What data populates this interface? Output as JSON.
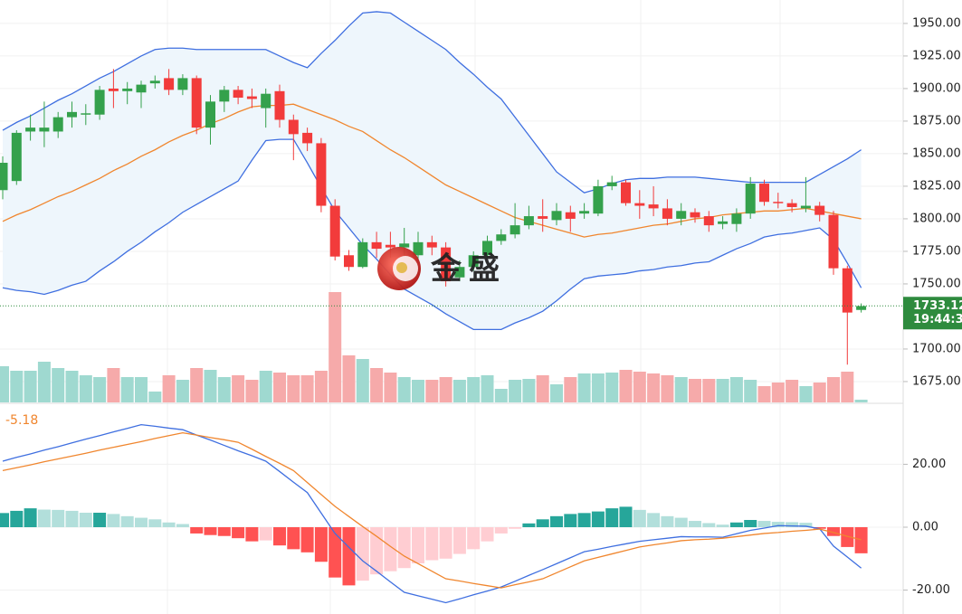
{
  "chart_data": [
    {
      "type": "candlestick",
      "categories": [
        null,
        null,
        null,
        null,
        null,
        null,
        null,
        null,
        null,
        null,
        null,
        null,
        null,
        null,
        null,
        null,
        null,
        null,
        null,
        null,
        null,
        null,
        null,
        null,
        null,
        null,
        null,
        null,
        null,
        null,
        null,
        null,
        null,
        null,
        null,
        null,
        null,
        null,
        null,
        null,
        null,
        null,
        null,
        null,
        null,
        null,
        null,
        null,
        null,
        null,
        null,
        null,
        null,
        null,
        null,
        null,
        null,
        null,
        null,
        null,
        null,
        null,
        null
      ],
      "open": [
        1822,
        1829,
        1867,
        1867,
        1867,
        1878,
        1880,
        1880,
        1900,
        1898,
        1897,
        1904,
        1908,
        1899,
        1908,
        1870,
        1890,
        1899,
        1894,
        1885,
        1898,
        1876,
        1866,
        1858,
        1810,
        1772,
        1763,
        1782,
        1780,
        1778,
        1772,
        1782,
        1778,
        1755,
        1763,
        1772,
        1783,
        1788,
        1795,
        1802,
        1799,
        1805,
        1804,
        1804,
        1825,
        1828,
        1812,
        1811,
        1808,
        1800,
        1805,
        1802,
        1796,
        1796,
        1804,
        1827,
        1813,
        1812,
        1808,
        1810,
        1803,
        1762,
        1730
      ],
      "high": [
        1848,
        1868,
        1880,
        1890,
        1882,
        1890,
        1888,
        1902,
        1915,
        1905,
        1906,
        1910,
        1915,
        1911,
        1910,
        1895,
        1902,
        1902,
        1900,
        1900,
        1903,
        1880,
        1870,
        1862,
        1815,
        1776,
        1785,
        1790,
        1790,
        1793,
        1790,
        1787,
        1782,
        1768,
        1775,
        1787,
        1792,
        1812,
        1810,
        1815,
        1812,
        1810,
        1812,
        1830,
        1833,
        1830,
        1822,
        1825,
        1815,
        1812,
        1808,
        1806,
        1802,
        1808,
        1832,
        1830,
        1820,
        1815,
        1832,
        1813,
        1806,
        1764,
        1735
      ],
      "low": [
        1815,
        1826,
        1860,
        1855,
        1862,
        1870,
        1872,
        1876,
        1885,
        1888,
        1885,
        1900,
        1895,
        1895,
        1865,
        1857,
        1882,
        1888,
        1885,
        1870,
        1870,
        1845,
        1852,
        1805,
        1768,
        1760,
        1762,
        1770,
        1770,
        1772,
        1768,
        1772,
        1748,
        1752,
        1760,
        1770,
        1780,
        1785,
        1792,
        1790,
        1795,
        1790,
        1800,
        1802,
        1822,
        1810,
        1800,
        1802,
        1795,
        1795,
        1797,
        1790,
        1792,
        1790,
        1800,
        1810,
        1808,
        1805,
        1805,
        1798,
        1757,
        1688,
        1728
      ],
      "close": [
        1843,
        1866,
        1870,
        1870,
        1878,
        1882,
        1881,
        1899,
        1898,
        1900,
        1903,
        1906,
        1899,
        1908,
        1870,
        1890,
        1899,
        1893,
        1892,
        1896,
        1876,
        1865,
        1858,
        1810,
        1771,
        1763,
        1782,
        1777,
        1778,
        1781,
        1782,
        1778,
        1752,
        1763,
        1772,
        1783,
        1788,
        1795,
        1802,
        1800,
        1806,
        1800,
        1806,
        1825,
        1828,
        1812,
        1810,
        1808,
        1800,
        1806,
        1801,
        1795,
        1798,
        1804,
        1827,
        1813,
        1812,
        1809,
        1810,
        1803,
        1762,
        1728,
        1733
      ],
      "bands": {
        "upper": [
          1868,
          1874,
          1879,
          1885,
          1891,
          1896,
          1902,
          1908,
          1913,
          1919,
          1925,
          1930,
          1931,
          1931,
          1930,
          1930,
          1930,
          1930,
          1930,
          1930,
          1925,
          1920,
          1916,
          1927,
          1937,
          1948,
          1958,
          1959,
          1958,
          1951,
          1944,
          1937,
          1930,
          1920,
          1911,
          1901,
          1892,
          1878,
          1864,
          1850,
          1836,
          1828,
          1820,
          1823,
          1827,
          1830,
          1831,
          1831,
          1832,
          1832,
          1832,
          1831,
          1830,
          1829,
          1828,
          1828,
          1828,
          1828,
          1828,
          1834,
          1840,
          1846,
          1853
        ],
        "middle": [
          1798,
          1803,
          1807,
          1812,
          1817,
          1821,
          1826,
          1831,
          1837,
          1842,
          1848,
          1853,
          1859,
          1864,
          1868,
          1873,
          1877,
          1882,
          1886,
          1887,
          1887,
          1888,
          1884,
          1880,
          1876,
          1871,
          1867,
          1860,
          1853,
          1847,
          1840,
          1833,
          1826,
          1821,
          1816,
          1811,
          1806,
          1801,
          1798,
          1795,
          1792,
          1789,
          1786,
          1788,
          1789,
          1791,
          1793,
          1795,
          1796,
          1798,
          1800,
          1801,
          1803,
          1804,
          1805,
          1806,
          1806,
          1807,
          1808,
          1806,
          1804,
          1802,
          1800
        ],
        "lower": [
          1747,
          1745,
          1744,
          1742,
          1745,
          1749,
          1752,
          1760,
          1767,
          1775,
          1782,
          1790,
          1797,
          1805,
          1811,
          1817,
          1823,
          1829,
          1845,
          1860,
          1861,
          1861,
          1843,
          1824,
          1806,
          1793,
          1780,
          1769,
          1757,
          1746,
          1740,
          1734,
          1727,
          1721,
          1715,
          1715,
          1715,
          1720,
          1724,
          1729,
          1737,
          1746,
          1754,
          1756,
          1757,
          1758,
          1760,
          1761,
          1763,
          1764,
          1766,
          1767,
          1772,
          1777,
          1781,
          1786,
          1788,
          1789,
          1791,
          1793,
          1784,
          1766,
          1747
        ]
      },
      "volume": [
        40,
        35,
        35,
        45,
        38,
        35,
        30,
        28,
        38,
        28,
        28,
        12,
        30,
        25,
        38,
        36,
        28,
        30,
        25,
        35,
        33,
        30,
        30,
        35,
        122,
        52,
        48,
        38,
        33,
        28,
        25,
        25,
        28,
        25,
        28,
        30,
        15,
        25,
        26,
        30,
        20,
        28,
        32,
        32,
        33,
        36,
        34,
        32,
        30,
        28,
        26,
        26,
        26,
        28,
        25,
        18,
        22,
        25,
        18,
        22,
        28,
        34,
        3
      ],
      "ylim": [
        1659,
        1968
      ],
      "yticks": [
        {
          "value": 1950,
          "label": "1950.00"
        },
        {
          "value": 1925,
          "label": "1925.00"
        },
        {
          "value": 1900,
          "label": "1900.00"
        },
        {
          "value": 1875,
          "label": "1875.00"
        },
        {
          "value": 1850,
          "label": "1850.00"
        },
        {
          "value": 1825,
          "label": "1825.00"
        },
        {
          "value": 1800,
          "label": "1800.00"
        },
        {
          "value": 1775,
          "label": "1775.00"
        },
        {
          "value": 1750,
          "label": "1750.00"
        },
        {
          "value": 1700,
          "label": "1700.00"
        },
        {
          "value": 1675,
          "label": "1675.00"
        }
      ],
      "grid": true,
      "last_price": 1733.12,
      "last_time": "19:44:3",
      "watermark": "金盛",
      "colors": {
        "up": "#34a14c",
        "down": "#f23b3b",
        "volume_up": "#9fd9d0",
        "volume_down": "#f6aaaa",
        "band": "#3f6fe0",
        "band_fill": "#eef6fc",
        "middle": "#f0862e",
        "last": "#2e8b3e"
      }
    },
    {
      "type": "macd",
      "histogram": [
        4.5,
        5.2,
        6,
        5.6,
        5.5,
        5.2,
        4.6,
        4.6,
        4.2,
        3.5,
        3,
        2.5,
        1.5,
        1,
        -2,
        -2.5,
        -2.8,
        -3.5,
        -4.5,
        -4.2,
        -5.8,
        -7,
        -8,
        -11,
        -16,
        -18.5,
        -17,
        -15,
        -14,
        -13,
        -11.5,
        -10.5,
        -10,
        -8.5,
        -7,
        -4.5,
        -2,
        -0.5,
        1.2,
        2.5,
        3.5,
        4.2,
        4.5,
        5,
        6,
        6.5,
        5.5,
        4.5,
        3.5,
        3,
        2,
        1.3,
        0.8,
        1.5,
        2.3,
        2,
        1.7,
        1.6,
        1.4,
        -0.5,
        -2.8,
        -6.3,
        -8.3
      ],
      "series": [
        {
          "color": "#3f6fe0",
          "values": [
            21,
            22.2,
            23.3,
            24.5,
            25.6,
            26.8,
            28,
            29.1,
            30.3,
            31.4,
            32.6,
            32.1,
            31.5,
            31,
            29.3,
            27.7,
            26,
            24.3,
            22.7,
            21,
            17.7,
            14.3,
            11,
            4.5,
            -2,
            -6.4,
            -10.7,
            -14,
            -17.4,
            -20.7,
            -21.8,
            -22.9,
            -24,
            -22.8,
            -21.5,
            -20.3,
            -19,
            -17.2,
            -15.3,
            -13.5,
            -11.6,
            -9.7,
            -7.8,
            -7,
            -6.1,
            -5.3,
            -4.5,
            -4,
            -3.5,
            -3,
            -3.1,
            -3.1,
            -3.2,
            -2.1,
            -1,
            -0.3,
            0.5,
            0.4,
            0.3,
            -0.5,
            -6,
            -9.5,
            -13
          ]
        },
        {
          "color": "#f0862e",
          "values": [
            18,
            18.9,
            19.8,
            20.8,
            21.7,
            22.6,
            23.5,
            24.5,
            25.4,
            26.3,
            27.2,
            28.2,
            29.1,
            30,
            29.3,
            28.5,
            27.8,
            27,
            24.8,
            22.5,
            20.3,
            18,
            14.2,
            10.4,
            6.6,
            3.4,
            0.2,
            -2.9,
            -6.1,
            -9.2,
            -11.6,
            -14,
            -16.4,
            -17.1,
            -17.9,
            -18.6,
            -19.3,
            -18.3,
            -17.4,
            -16.4,
            -14.5,
            -12.6,
            -10.7,
            -9.6,
            -8.5,
            -7.4,
            -6.3,
            -5.6,
            -5,
            -4.3,
            -4,
            -3.8,
            -3.5,
            -3,
            -2.5,
            -2,
            -1.7,
            -1.3,
            -1,
            -0.6,
            -1.7,
            -2.9,
            -4
          ]
        }
      ],
      "ylim": [
        -27.6,
        39.1
      ],
      "yticks": [
        {
          "value": 20,
          "label": "20.00"
        },
        {
          "value": 0,
          "label": "0.00"
        },
        {
          "value": -20,
          "label": "-20.00"
        }
      ],
      "grid": true,
      "macd_value": -5.18,
      "colors": {
        "pos_up": "#26a69a",
        "pos_down": "#b2dfdb",
        "neg_down": "#ff5252",
        "neg_up": "#ffcdd2"
      }
    }
  ]
}
